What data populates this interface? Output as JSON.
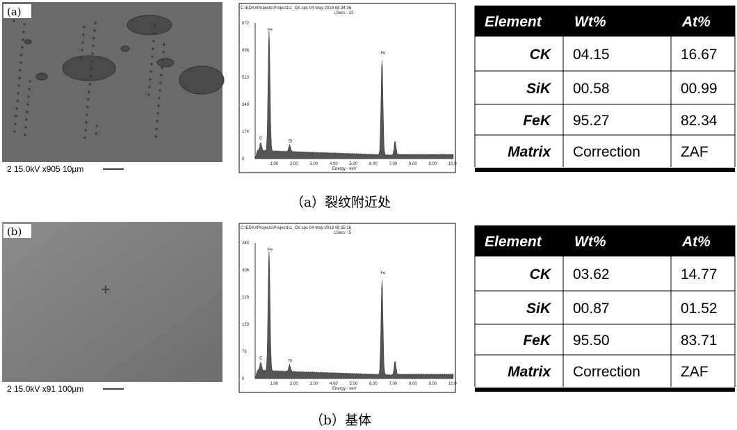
{
  "panels": [
    {
      "sem": {
        "label": "(a)",
        "info": "2 15.0kV x905 10µm"
      },
      "spectrum": {
        "header": "C:\\EDAXProjects\\Project1\\1_CK.spc  04-May-2018 08:34:36",
        "lsecs": "LSecs : 12",
        "yticks": [
          "872",
          "698",
          "523",
          "349",
          "174",
          "0"
        ],
        "xticks": [
          "1.00",
          "2.00",
          "3.00",
          "4.00",
          "5.00",
          "6.00",
          "7.00",
          "8.00",
          "9.00",
          "10.0"
        ],
        "xlabel": "Energy - keV",
        "peaks": [
          "C",
          "Fe",
          "Si",
          "Fe"
        ]
      },
      "table": {
        "header": [
          "Element",
          "Wt%",
          "At%"
        ],
        "rows": [
          [
            "CK",
            "04.15",
            "16.67"
          ],
          [
            "SiK",
            "00.58",
            "00.99"
          ],
          [
            "FeK",
            "95.27",
            "82.34"
          ],
          [
            "Matrix",
            "Correction",
            "ZAF"
          ]
        ]
      },
      "caption": "（a）裂纹附近处"
    },
    {
      "sem": {
        "label": "(b)",
        "info": "2 15.0kV x91 100µm"
      },
      "spectrum": {
        "header": "C:\\EDAXProjects\\Project1\\1_CK.spc  04-May-2018 08:35:16",
        "lsecs": "LSecs : 5",
        "yticks": [
          "383",
          "306",
          "229",
          "153",
          "76",
          "0"
        ],
        "xticks": [
          "1.00",
          "2.00",
          "3.00",
          "4.00",
          "5.00",
          "6.00",
          "7.00",
          "8.00",
          "9.00",
          "10.0"
        ],
        "xlabel": "Energy - keV",
        "peaks": [
          "C",
          "Fe",
          "Si",
          "Fe"
        ]
      },
      "table": {
        "header": [
          "Element",
          "Wt%",
          "At%"
        ],
        "rows": [
          [
            "CK",
            "03.62",
            "14.77"
          ],
          [
            "SiK",
            "00.87",
            "01.52"
          ],
          [
            "FeK",
            "95.50",
            "83.71"
          ],
          [
            "Matrix",
            "Correction",
            "ZAF"
          ]
        ]
      },
      "caption": "（b）基体"
    }
  ]
}
